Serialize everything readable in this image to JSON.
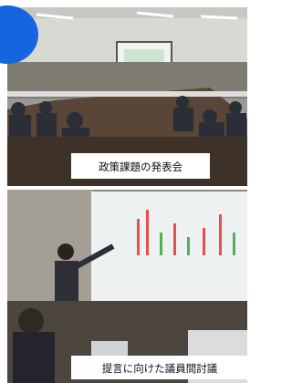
{
  "photos": [
    {
      "caption": "政策課題の発表会"
    },
    {
      "caption": "提言に向けた議員間討議"
    }
  ]
}
